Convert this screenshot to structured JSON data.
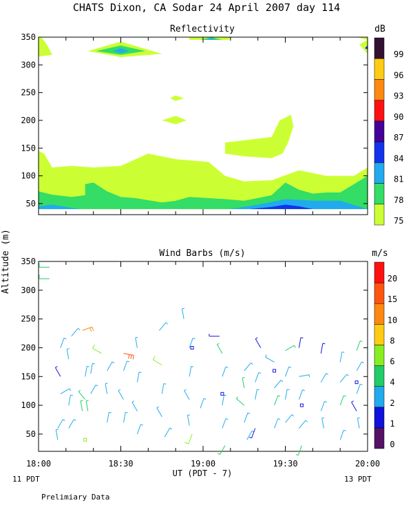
{
  "header": {
    "title": "CHATS Dixon, CA  Sodar  24 April 2007  day 114",
    "footnote": "Prelimiary Data"
  },
  "colors": {
    "c75": "#ccff33",
    "c78": "#33dd66",
    "c81": "#22aaee",
    "c84": "#1133ee",
    "c87": "#440099",
    "c90": "#ff1111",
    "c93": "#ff8811",
    "c96": "#ffcc11",
    "c99": "#331133"
  },
  "chart_data": [
    {
      "type": "heatmap",
      "title": "Reflectivity",
      "ylabel": "Altitude (m)",
      "ylim": [
        30,
        350
      ],
      "yticks": [
        "50",
        "100",
        "150",
        "200",
        "250",
        "300",
        "350"
      ],
      "colorbar": {
        "unit": "dB",
        "levels": [
          "75",
          "78",
          "81",
          "84",
          "87",
          "90",
          "93",
          "96",
          "99"
        ]
      },
      "x_ticks_min": [
        0,
        30,
        60,
        90,
        120
      ],
      "regions": [
        {
          "level": "75",
          "points": [
            [
              0,
              40
            ],
            [
              0,
              145
            ],
            [
              2,
              140
            ],
            [
              5,
              115
            ],
            [
              12,
              118
            ],
            [
              20,
              115
            ],
            [
              30,
              118
            ],
            [
              40,
              140
            ],
            [
              50,
              130
            ],
            [
              62,
              125
            ],
            [
              68,
              100
            ],
            [
              75,
              90
            ],
            [
              85,
              92
            ],
            [
              95,
              110
            ],
            [
              105,
              100
            ],
            [
              115,
              100
            ],
            [
              120,
              115
            ],
            [
              120,
              40
            ]
          ]
        },
        {
          "level": "75",
          "points": [
            [
              68,
              140
            ],
            [
              68,
              160
            ],
            [
              85,
              170
            ],
            [
              88,
              200
            ],
            [
              92,
              210
            ],
            [
              93,
              190
            ],
            [
              91,
              160
            ],
            [
              89,
              140
            ],
            [
              85,
              132
            ],
            [
              75,
              135
            ]
          ]
        },
        {
          "level": "75",
          "points": [
            [
              0,
              315
            ],
            [
              0,
              350
            ],
            [
              1,
              352
            ],
            [
              3,
              337
            ],
            [
              5,
              318
            ]
          ]
        },
        {
          "level": "75",
          "points": [
            [
              18,
              325
            ],
            [
              30,
              342
            ],
            [
              45,
              320
            ],
            [
              30,
              314
            ]
          ]
        },
        {
          "level": "75",
          "points": [
            [
              116,
              350
            ],
            [
              120,
              352
            ],
            [
              120,
              320
            ],
            [
              117,
              337
            ],
            [
              120,
              345
            ]
          ]
        },
        {
          "level": "75",
          "points": [
            [
              55,
              345
            ],
            [
              55,
              352
            ],
            [
              71,
              352
            ],
            [
              69,
              345
            ]
          ]
        },
        {
          "level": "75",
          "points": [
            [
              48,
              240
            ],
            [
              50,
              245
            ],
            [
              53,
              240
            ],
            [
              50,
              235
            ]
          ]
        },
        {
          "level": "75",
          "points": [
            [
              45,
              200
            ],
            [
              50,
              208
            ],
            [
              54,
              200
            ],
            [
              50,
              193
            ]
          ]
        },
        {
          "level": "78",
          "points": [
            [
              0,
              40
            ],
            [
              0,
              72
            ],
            [
              5,
              66
            ],
            [
              12,
              62
            ],
            [
              17,
              65
            ],
            [
              17,
              85
            ],
            [
              20,
              88
            ],
            [
              25,
              72
            ],
            [
              30,
              62
            ],
            [
              35,
              60
            ],
            [
              45,
              52
            ],
            [
              50,
              55
            ],
            [
              55,
              62
            ],
            [
              68,
              58
            ],
            [
              75,
              55
            ],
            [
              85,
              65
            ],
            [
              90,
              88
            ],
            [
              95,
              75
            ],
            [
              100,
              68
            ],
            [
              105,
              70
            ],
            [
              110,
              70
            ],
            [
              115,
              85
            ],
            [
              120,
              100
            ],
            [
              120,
              40
            ]
          ]
        },
        {
          "level": "78",
          "points": [
            [
              21,
              325
            ],
            [
              30,
              335
            ],
            [
              39,
              325
            ],
            [
              30,
              318
            ]
          ]
        },
        {
          "level": "78",
          "points": [
            [
              59,
              345
            ],
            [
              63,
              351
            ],
            [
              67,
              345
            ]
          ]
        },
        {
          "level": "81",
          "points": [
            [
              0,
              40
            ],
            [
              0,
              45
            ],
            [
              5,
              48
            ],
            [
              10,
              44
            ],
            [
              15,
              40
            ]
          ]
        },
        {
          "level": "81",
          "points": [
            [
              70,
              40
            ],
            [
              80,
              48
            ],
            [
              90,
              58
            ],
            [
              100,
              55
            ],
            [
              110,
              55
            ],
            [
              120,
              40
            ]
          ]
        },
        {
          "level": "81",
          "points": [
            [
              27,
              325
            ],
            [
              30,
              330
            ],
            [
              33,
              325
            ],
            [
              30,
              321
            ]
          ]
        },
        {
          "level": "81",
          "points": [
            [
              61,
              345
            ],
            [
              63,
              348
            ],
            [
              65,
              345
            ]
          ]
        },
        {
          "level": "84",
          "points": [
            [
              77,
              40
            ],
            [
              85,
              44
            ],
            [
              90,
              48
            ],
            [
              95,
              45
            ],
            [
              100,
              40
            ]
          ]
        },
        {
          "level": "84",
          "points": [
            [
              119,
              330
            ],
            [
              120,
              335
            ],
            [
              120,
              328
            ]
          ]
        }
      ]
    },
    {
      "type": "scatter",
      "title": "Wind Barbs (m/s)",
      "ylabel": "Altitude (m)",
      "ylim": [
        20,
        350
      ],
      "yticks": [
        "50",
        "100",
        "150",
        "200",
        "250",
        "300",
        "350"
      ],
      "xlabel": "UT  (PDT - 7)",
      "x_tick_labels": [
        "18:00",
        "18:30",
        "19:00",
        "19:30",
        "20:00"
      ],
      "x_ticks_min": [
        0,
        30,
        60,
        90,
        120
      ],
      "x_start_label": "11 PDT",
      "x_end_label": "13 PDT",
      "colorbar": {
        "unit": "m/s",
        "levels": [
          "0",
          "1",
          "2",
          "4",
          "6",
          "8",
          "10",
          "15",
          "20"
        ]
      },
      "barbs": [
        [
          4,
          340,
          270,
          5
        ],
        [
          4,
          320,
          270,
          5
        ],
        [
          8,
          200,
          20,
          2
        ],
        [
          8,
          150,
          330,
          1
        ],
        [
          8,
          120,
          60,
          2
        ],
        [
          7,
          60,
          30,
          2
        ],
        [
          7,
          40,
          350,
          2
        ],
        [
          12,
          220,
          40,
          2
        ],
        [
          11,
          180,
          350,
          2
        ],
        [
          11,
          100,
          10,
          2
        ],
        [
          11,
          60,
          30,
          2
        ],
        [
          16,
          230,
          70,
          10
        ],
        [
          17,
          150,
          10,
          2
        ],
        [
          17,
          110,
          320,
          4
        ],
        [
          16,
          90,
          350,
          4
        ],
        [
          19,
          155,
          10,
          2
        ],
        [
          19,
          120,
          30,
          2
        ],
        [
          18,
          90,
          350,
          4
        ],
        [
          23,
          190,
          300,
          6
        ],
        [
          25,
          160,
          30,
          2
        ],
        [
          25,
          120,
          350,
          2
        ],
        [
          25,
          70,
          10,
          2
        ],
        [
          31,
          190,
          100,
          15
        ],
        [
          31,
          160,
          20,
          2
        ],
        [
          31,
          110,
          330,
          2
        ],
        [
          31,
          70,
          10,
          2
        ],
        [
          36,
          200,
          350,
          2
        ],
        [
          36,
          140,
          10,
          2
        ],
        [
          36,
          90,
          330,
          2
        ],
        [
          36,
          50,
          20,
          2
        ],
        [
          44,
          230,
          40,
          2
        ],
        [
          45,
          170,
          300,
          6
        ],
        [
          45,
          120,
          10,
          2
        ],
        [
          45,
          80,
          330,
          2
        ],
        [
          46,
          45,
          30,
          2
        ],
        [
          53,
          250,
          350,
          2
        ],
        [
          55,
          200,
          20,
          2
        ],
        [
          55,
          150,
          10,
          2
        ],
        [
          55,
          110,
          330,
          2
        ],
        [
          55,
          65,
          350,
          2
        ],
        [
          56,
          50,
          200,
          6
        ],
        [
          59,
          95,
          20,
          2
        ],
        [
          66,
          220,
          270,
          1
        ],
        [
          67,
          190,
          330,
          4
        ],
        [
          67,
          150,
          20,
          2
        ],
        [
          67,
          100,
          10,
          2
        ],
        [
          67,
          60,
          20,
          2
        ],
        [
          68,
          30,
          210,
          4
        ],
        [
          75,
          160,
          40,
          2
        ],
        [
          75,
          130,
          350,
          4
        ],
        [
          75,
          100,
          310,
          4
        ],
        [
          75,
          70,
          20,
          2
        ],
        [
          76,
          40,
          30,
          2
        ],
        [
          81,
          200,
          330,
          1
        ],
        [
          79,
          140,
          20,
          2
        ],
        [
          79,
          110,
          10,
          2
        ],
        [
          79,
          60,
          200,
          1
        ],
        [
          86,
          175,
          300,
          2
        ],
        [
          86,
          130,
          40,
          2
        ],
        [
          86,
          100,
          20,
          4
        ],
        [
          86,
          60,
          20,
          2
        ],
        [
          90,
          195,
          60,
          4
        ],
        [
          90,
          150,
          20,
          2
        ],
        [
          90,
          110,
          10,
          2
        ],
        [
          90,
          70,
          40,
          2
        ],
        [
          95,
          200,
          10,
          1
        ],
        [
          95,
          150,
          80,
          2
        ],
        [
          95,
          110,
          20,
          2
        ],
        [
          95,
          60,
          40,
          2
        ],
        [
          96,
          30,
          200,
          4
        ],
        [
          103,
          190,
          10,
          1
        ],
        [
          103,
          140,
          30,
          2
        ],
        [
          103,
          90,
          20,
          2
        ],
        [
          104,
          60,
          350,
          2
        ],
        [
          110,
          175,
          10,
          2
        ],
        [
          110,
          140,
          40,
          2
        ],
        [
          110,
          100,
          20,
          4
        ],
        [
          110,
          40,
          20,
          2
        ],
        [
          116,
          195,
          20,
          4
        ],
        [
          116,
          160,
          30,
          2
        ],
        [
          116,
          120,
          20,
          2
        ],
        [
          116,
          90,
          330,
          1
        ],
        [
          117,
          60,
          350,
          2
        ]
      ],
      "calm_points": [
        [
          17,
          40,
          "6"
        ],
        [
          56,
          200,
          "1"
        ],
        [
          67,
          120,
          "1"
        ],
        [
          86,
          160,
          "1"
        ],
        [
          96,
          100,
          "1"
        ],
        [
          116,
          140,
          "1"
        ]
      ]
    }
  ]
}
